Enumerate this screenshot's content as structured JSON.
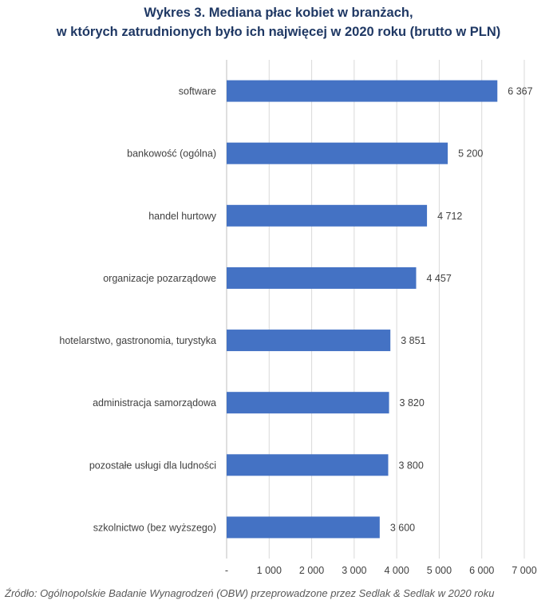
{
  "chart_data": {
    "type": "bar",
    "orientation": "horizontal",
    "title_lines": [
      "Wykres 3. Mediana płac kobiet w branżach,",
      "w których zatrudnionych było ich najwięcej w 2020 roku (brutto w PLN)"
    ],
    "categories": [
      "software",
      "bankowość (ogólna)",
      "handel hurtowy",
      "organizacje pozarządowe",
      "hotelarstwo, gastronomia, turystyka",
      "administracja samorządowa",
      "pozostałe usługi dla ludności",
      "szkolnictwo (bez wyższego)"
    ],
    "values": [
      6367,
      5200,
      4712,
      4457,
      3851,
      3820,
      3800,
      3600
    ],
    "value_labels": [
      "6 367",
      "5 200",
      "4 712",
      "4 457",
      "3 851",
      "3 820",
      "3 800",
      "3 600"
    ],
    "x_ticks": [
      0,
      1000,
      2000,
      3000,
      4000,
      5000,
      6000,
      7000
    ],
    "x_tick_labels": [
      "-",
      "1 000",
      "2 000",
      "3 000",
      "4 000",
      "5 000",
      "6 000",
      "7 000"
    ],
    "xlim": [
      0,
      7000
    ],
    "grid": true,
    "bar_color": "#4472c4",
    "xlabel": "",
    "ylabel": ""
  },
  "source_note": "Źródło: Ogólnopolskie Badanie Wynagrodzeń (OBW) przeprowadzone przez Sedlak & Sedlak w 2020 roku"
}
